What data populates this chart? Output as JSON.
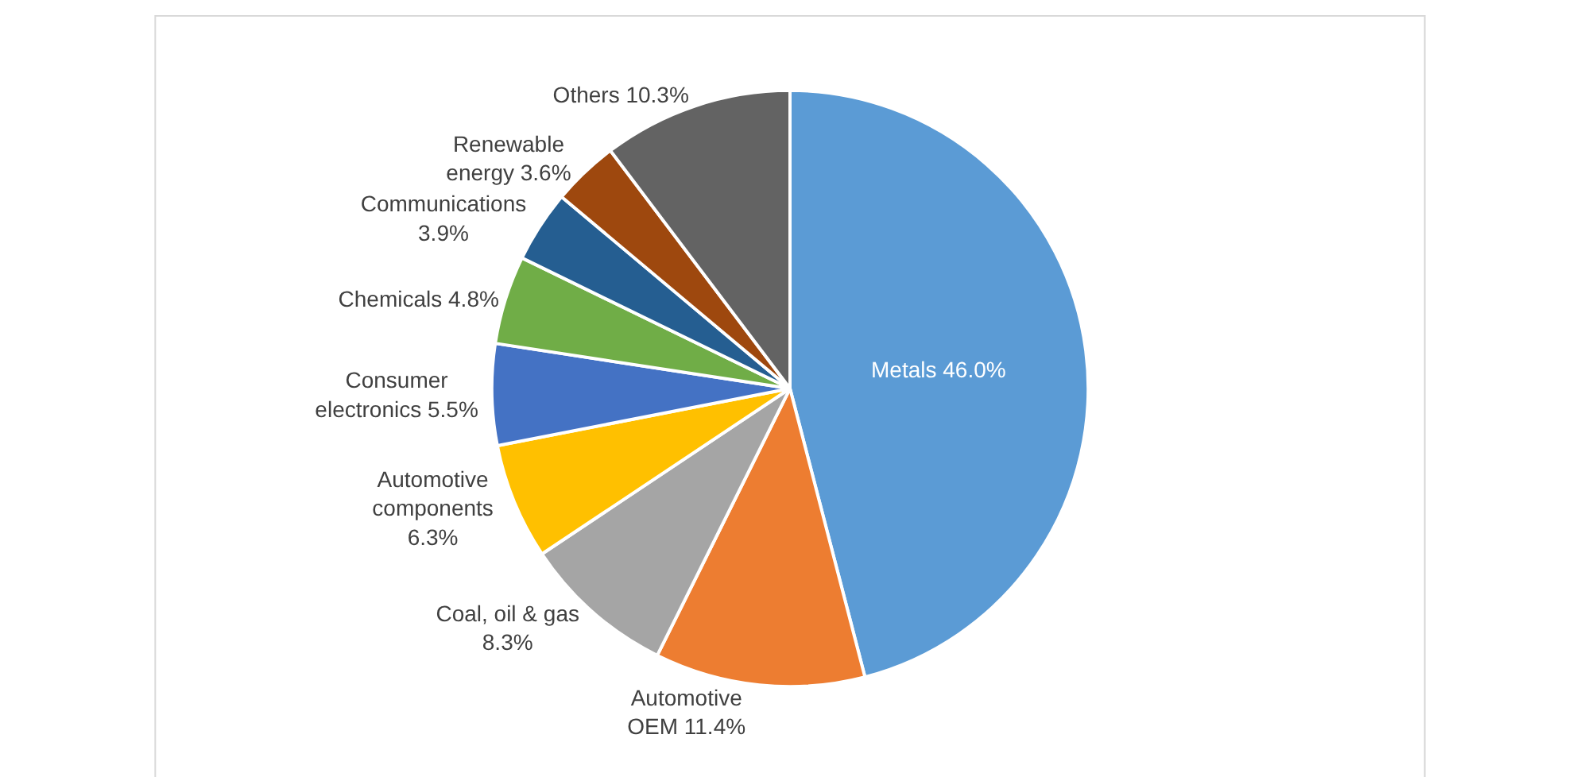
{
  "chart_data": {
    "type": "pie",
    "categories": [
      "Metals",
      "Automotive OEM",
      "Coal, oil & gas",
      "Automotive components",
      "Consumer electronics",
      "Chemicals",
      "Communications",
      "Renewable energy",
      "Others"
    ],
    "values": [
      46.0,
      11.4,
      8.3,
      6.3,
      5.5,
      4.8,
      3.9,
      3.6,
      10.3
    ],
    "colors": [
      "#5b9bd5",
      "#ed7d31",
      "#a5a5a5",
      "#ffc000",
      "#4472c4",
      "#70ad47",
      "#255e91",
      "#9e480e",
      "#636363"
    ],
    "value_labels": [
      "46.0%",
      "11.4%",
      "8.3%",
      "6.3%",
      "5.5%",
      "4.8%",
      "3.9%",
      "3.6%",
      "10.3%"
    ],
    "legend": false
  }
}
